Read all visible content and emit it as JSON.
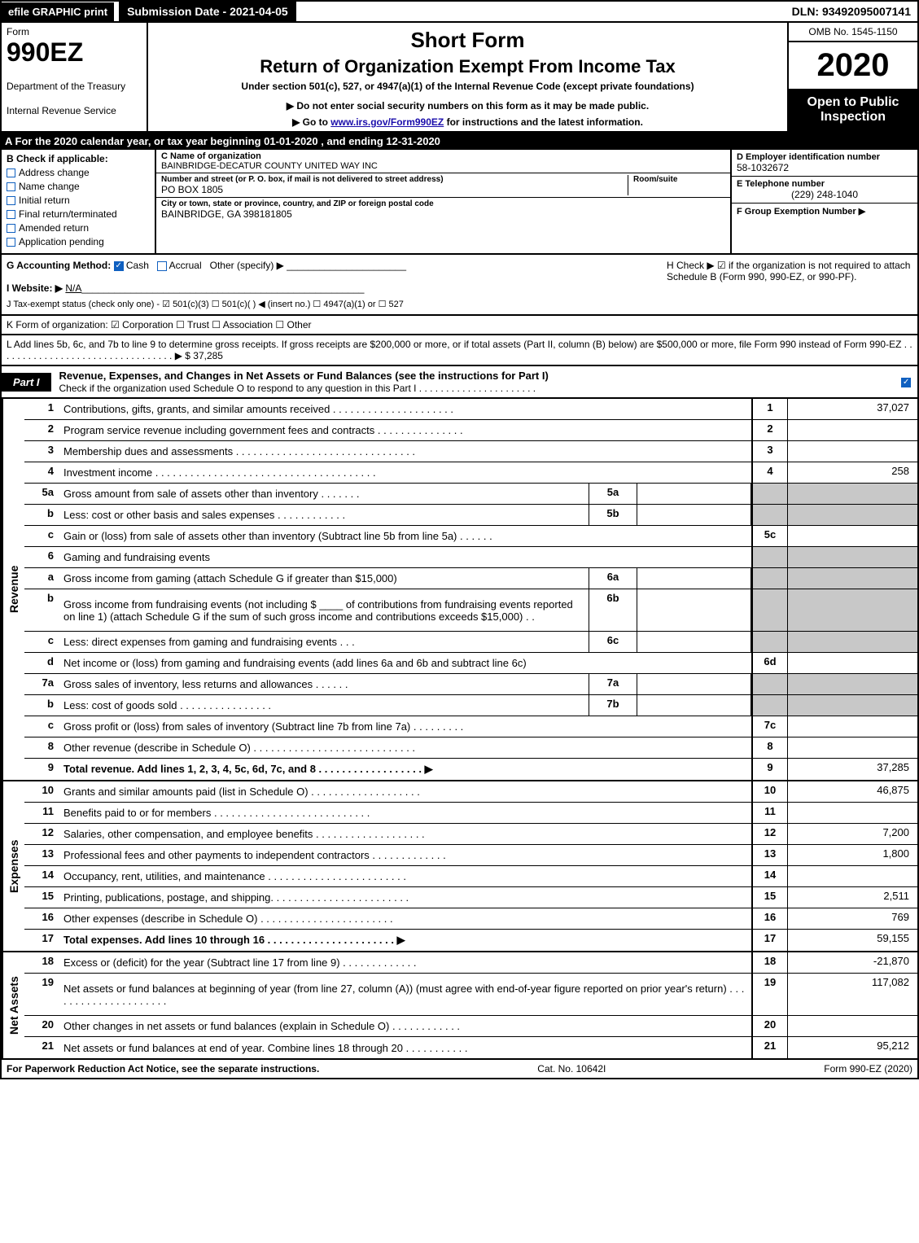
{
  "topbar": {
    "efile": "efile GRAPHIC print",
    "submission": "Submission Date - 2021-04-05",
    "dln": "DLN: 93492095007141"
  },
  "header": {
    "form_label": "Form",
    "form_code": "990EZ",
    "dept1": "Department of the Treasury",
    "dept2": "Internal Revenue Service",
    "title1": "Short Form",
    "title2": "Return of Organization Exempt From Income Tax",
    "subtitle": "Under section 501(c), 527, or 4947(a)(1) of the Internal Revenue Code (except private foundations)",
    "note1": "▶ Do not enter social security numbers on this form as it may be made public.",
    "note2_pre": "▶ Go to ",
    "note2_link": "www.irs.gov/Form990EZ",
    "note2_post": " for instructions and the latest information.",
    "omb": "OMB No. 1545-1150",
    "year": "2020",
    "inspect": "Open to Public Inspection"
  },
  "line_A": "A  For the 2020 calendar year, or tax year beginning 01-01-2020 , and ending 12-31-2020",
  "col_B": {
    "heading": "B  Check if applicable:",
    "items": [
      "Address change",
      "Name change",
      "Initial return",
      "Final return/terminated",
      "Amended return",
      "Application pending"
    ]
  },
  "col_C": {
    "name_label": "C Name of organization",
    "name": "BAINBRIDGE-DECATUR COUNTY UNITED WAY INC",
    "street_label": "Number and street (or P. O. box, if mail is not delivered to street address)",
    "room_label": "Room/suite",
    "street": "PO BOX 1805",
    "city_label": "City or town, state or province, country, and ZIP or foreign postal code",
    "city": "BAINBRIDGE, GA  398181805"
  },
  "col_D": {
    "ein_label": "D Employer identification number",
    "ein": "58-1032672",
    "tel_label": "E Telephone number",
    "tel": "(229) 248-1040",
    "grp_label": "F Group Exemption Number  ▶"
  },
  "row_G": {
    "label": "G Accounting Method:",
    "cash": "Cash",
    "accrual": "Accrual",
    "other": "Other (specify) ▶"
  },
  "row_H": {
    "text": "H  Check ▶ ☑ if the organization is not required to attach Schedule B (Form 990, 990-EZ, or 990-PF)."
  },
  "row_I": {
    "label": "I Website: ▶",
    "value": "N/A"
  },
  "row_J": {
    "text": "J Tax-exempt status (check only one) - ☑ 501(c)(3)  ☐ 501(c)(  ) ◀ (insert no.)  ☐ 4947(a)(1) or  ☐ 527"
  },
  "row_K": {
    "text": "K Form of organization:  ☑ Corporation  ☐ Trust  ☐ Association  ☐ Other"
  },
  "row_L": {
    "text": "L Add lines 5b, 6c, and 7b to line 9 to determine gross receipts. If gross receipts are $200,000 or more, or if total assets (Part II, column (B) below) are $500,000 or more, file Form 990 instead of Form 990-EZ . . . . . . . . . . . . . . . . . . . . . . . . . . . . . . . . . ▶ $ 37,285"
  },
  "part1": {
    "label": "Part I",
    "title": "Revenue, Expenses, and Changes in Net Assets or Fund Balances (see the instructions for Part I)",
    "check_note": "Check if the organization used Schedule O to respond to any question in this Part I . . . . . . . . . . . . . . . . . . . . . ."
  },
  "revenue": {
    "side": "Revenue",
    "rows": [
      {
        "ln": "1",
        "desc": "Contributions, gifts, grants, and similar amounts received . . . . . . . . . . . . . . . . . . . . .",
        "num": "1",
        "val": "37,027"
      },
      {
        "ln": "2",
        "desc": "Program service revenue including government fees and contracts . . . . . . . . . . . . . . .",
        "num": "2",
        "val": ""
      },
      {
        "ln": "3",
        "desc": "Membership dues and assessments . . . . . . . . . . . . . . . . . . . . . . . . . . . . . . .",
        "num": "3",
        "val": ""
      },
      {
        "ln": "4",
        "desc": "Investment income . . . . . . . . . . . . . . . . . . . . . . . . . . . . . . . . . . . . . .",
        "num": "4",
        "val": "258"
      },
      {
        "ln": "5a",
        "desc": "Gross amount from sale of assets other than inventory . . . . . . .",
        "sub": "5a",
        "grey": true
      },
      {
        "ln": "b",
        "desc": "Less: cost or other basis and sales expenses . . . . . . . . . . . .",
        "sub": "5b",
        "grey": true
      },
      {
        "ln": "c",
        "desc": "Gain or (loss) from sale of assets other than inventory (Subtract line 5b from line 5a) . . . . . .",
        "num": "5c",
        "val": ""
      },
      {
        "ln": "6",
        "desc": "Gaming and fundraising events",
        "greynum": true
      },
      {
        "ln": "a",
        "desc": "Gross income from gaming (attach Schedule G if greater than $15,000)",
        "sub": "6a",
        "grey": true
      },
      {
        "ln": "b",
        "desc": "Gross income from fundraising events (not including $ ____ of contributions from fundraising events reported on line 1) (attach Schedule G if the sum of such gross income and contributions exceeds $15,000)   . .",
        "sub": "6b",
        "grey": true,
        "tall": true
      },
      {
        "ln": "c",
        "desc": "Less: direct expenses from gaming and fundraising events     . . .",
        "sub": "6c",
        "grey": true
      },
      {
        "ln": "d",
        "desc": "Net income or (loss) from gaming and fundraising events (add lines 6a and 6b and subtract line 6c)",
        "num": "6d",
        "val": ""
      },
      {
        "ln": "7a",
        "desc": "Gross sales of inventory, less returns and allowances . . . . . .",
        "sub": "7a",
        "grey": true
      },
      {
        "ln": "b",
        "desc": "Less: cost of goods sold     . . . . . . . . . . . . . . . .",
        "sub": "7b",
        "grey": true
      },
      {
        "ln": "c",
        "desc": "Gross profit or (loss) from sales of inventory (Subtract line 7b from line 7a) . . . . . . . . .",
        "num": "7c",
        "val": ""
      },
      {
        "ln": "8",
        "desc": "Other revenue (describe in Schedule O) . . . . . . . . . . . . . . . . . . . . . . . . . . . .",
        "num": "8",
        "val": ""
      },
      {
        "ln": "9",
        "desc": "Total revenue. Add lines 1, 2, 3, 4, 5c, 6d, 7c, and 8  . . . . . . . . . . . . . . . . . .   ▶",
        "num": "9",
        "val": "37,285",
        "bold": true
      }
    ]
  },
  "expenses": {
    "side": "Expenses",
    "rows": [
      {
        "ln": "10",
        "desc": "Grants and similar amounts paid (list in Schedule O) . . . . . . . . . . . . . . . . . . .",
        "num": "10",
        "val": "46,875"
      },
      {
        "ln": "11",
        "desc": "Benefits paid to or for members    . . . . . . . . . . . . . . . . . . . . . . . . . . .",
        "num": "11",
        "val": ""
      },
      {
        "ln": "12",
        "desc": "Salaries, other compensation, and employee benefits . . . . . . . . . . . . . . . . . . .",
        "num": "12",
        "val": "7,200"
      },
      {
        "ln": "13",
        "desc": "Professional fees and other payments to independent contractors . . . . . . . . . . . . .",
        "num": "13",
        "val": "1,800"
      },
      {
        "ln": "14",
        "desc": "Occupancy, rent, utilities, and maintenance . . . . . . . . . . . . . . . . . . . . . . . .",
        "num": "14",
        "val": ""
      },
      {
        "ln": "15",
        "desc": "Printing, publications, postage, and shipping. . . . . . . . . . . . . . . . . . . . . . . .",
        "num": "15",
        "val": "2,511"
      },
      {
        "ln": "16",
        "desc": "Other expenses (describe in Schedule O)    . . . . . . . . . . . . . . . . . . . . . . .",
        "num": "16",
        "val": "769"
      },
      {
        "ln": "17",
        "desc": "Total expenses. Add lines 10 through 16    . . . . . . . . . . . . . . . . . . . . . .   ▶",
        "num": "17",
        "val": "59,155",
        "bold": true
      }
    ]
  },
  "netassets": {
    "side": "Net Assets",
    "rows": [
      {
        "ln": "18",
        "desc": "Excess or (deficit) for the year (Subtract line 17 from line 9)       . . . . . . . . . . . . .",
        "num": "18",
        "val": "-21,870"
      },
      {
        "ln": "19",
        "desc": "Net assets or fund balances at beginning of year (from line 27, column (A)) (must agree with end-of-year figure reported on prior year's return) . . . . . . . . . . . . . . . . . . . . .",
        "num": "19",
        "val": "117,082",
        "tall": true
      },
      {
        "ln": "20",
        "desc": "Other changes in net assets or fund balances (explain in Schedule O) . . . . . . . . . . . .",
        "num": "20",
        "val": ""
      },
      {
        "ln": "21",
        "desc": "Net assets or fund balances at end of year. Combine lines 18 through 20 . . . . . . . . . . .",
        "num": "21",
        "val": "95,212"
      }
    ]
  },
  "footer": {
    "left": "For Paperwork Reduction Act Notice, see the separate instructions.",
    "center": "Cat. No. 10642I",
    "right": "Form 990-EZ (2020)"
  },
  "colors": {
    "black": "#000000",
    "white": "#ffffff",
    "grey_fill": "#c8c8c8",
    "checkbox_blue": "#1060c0",
    "link_blue": "#1a0dab"
  }
}
